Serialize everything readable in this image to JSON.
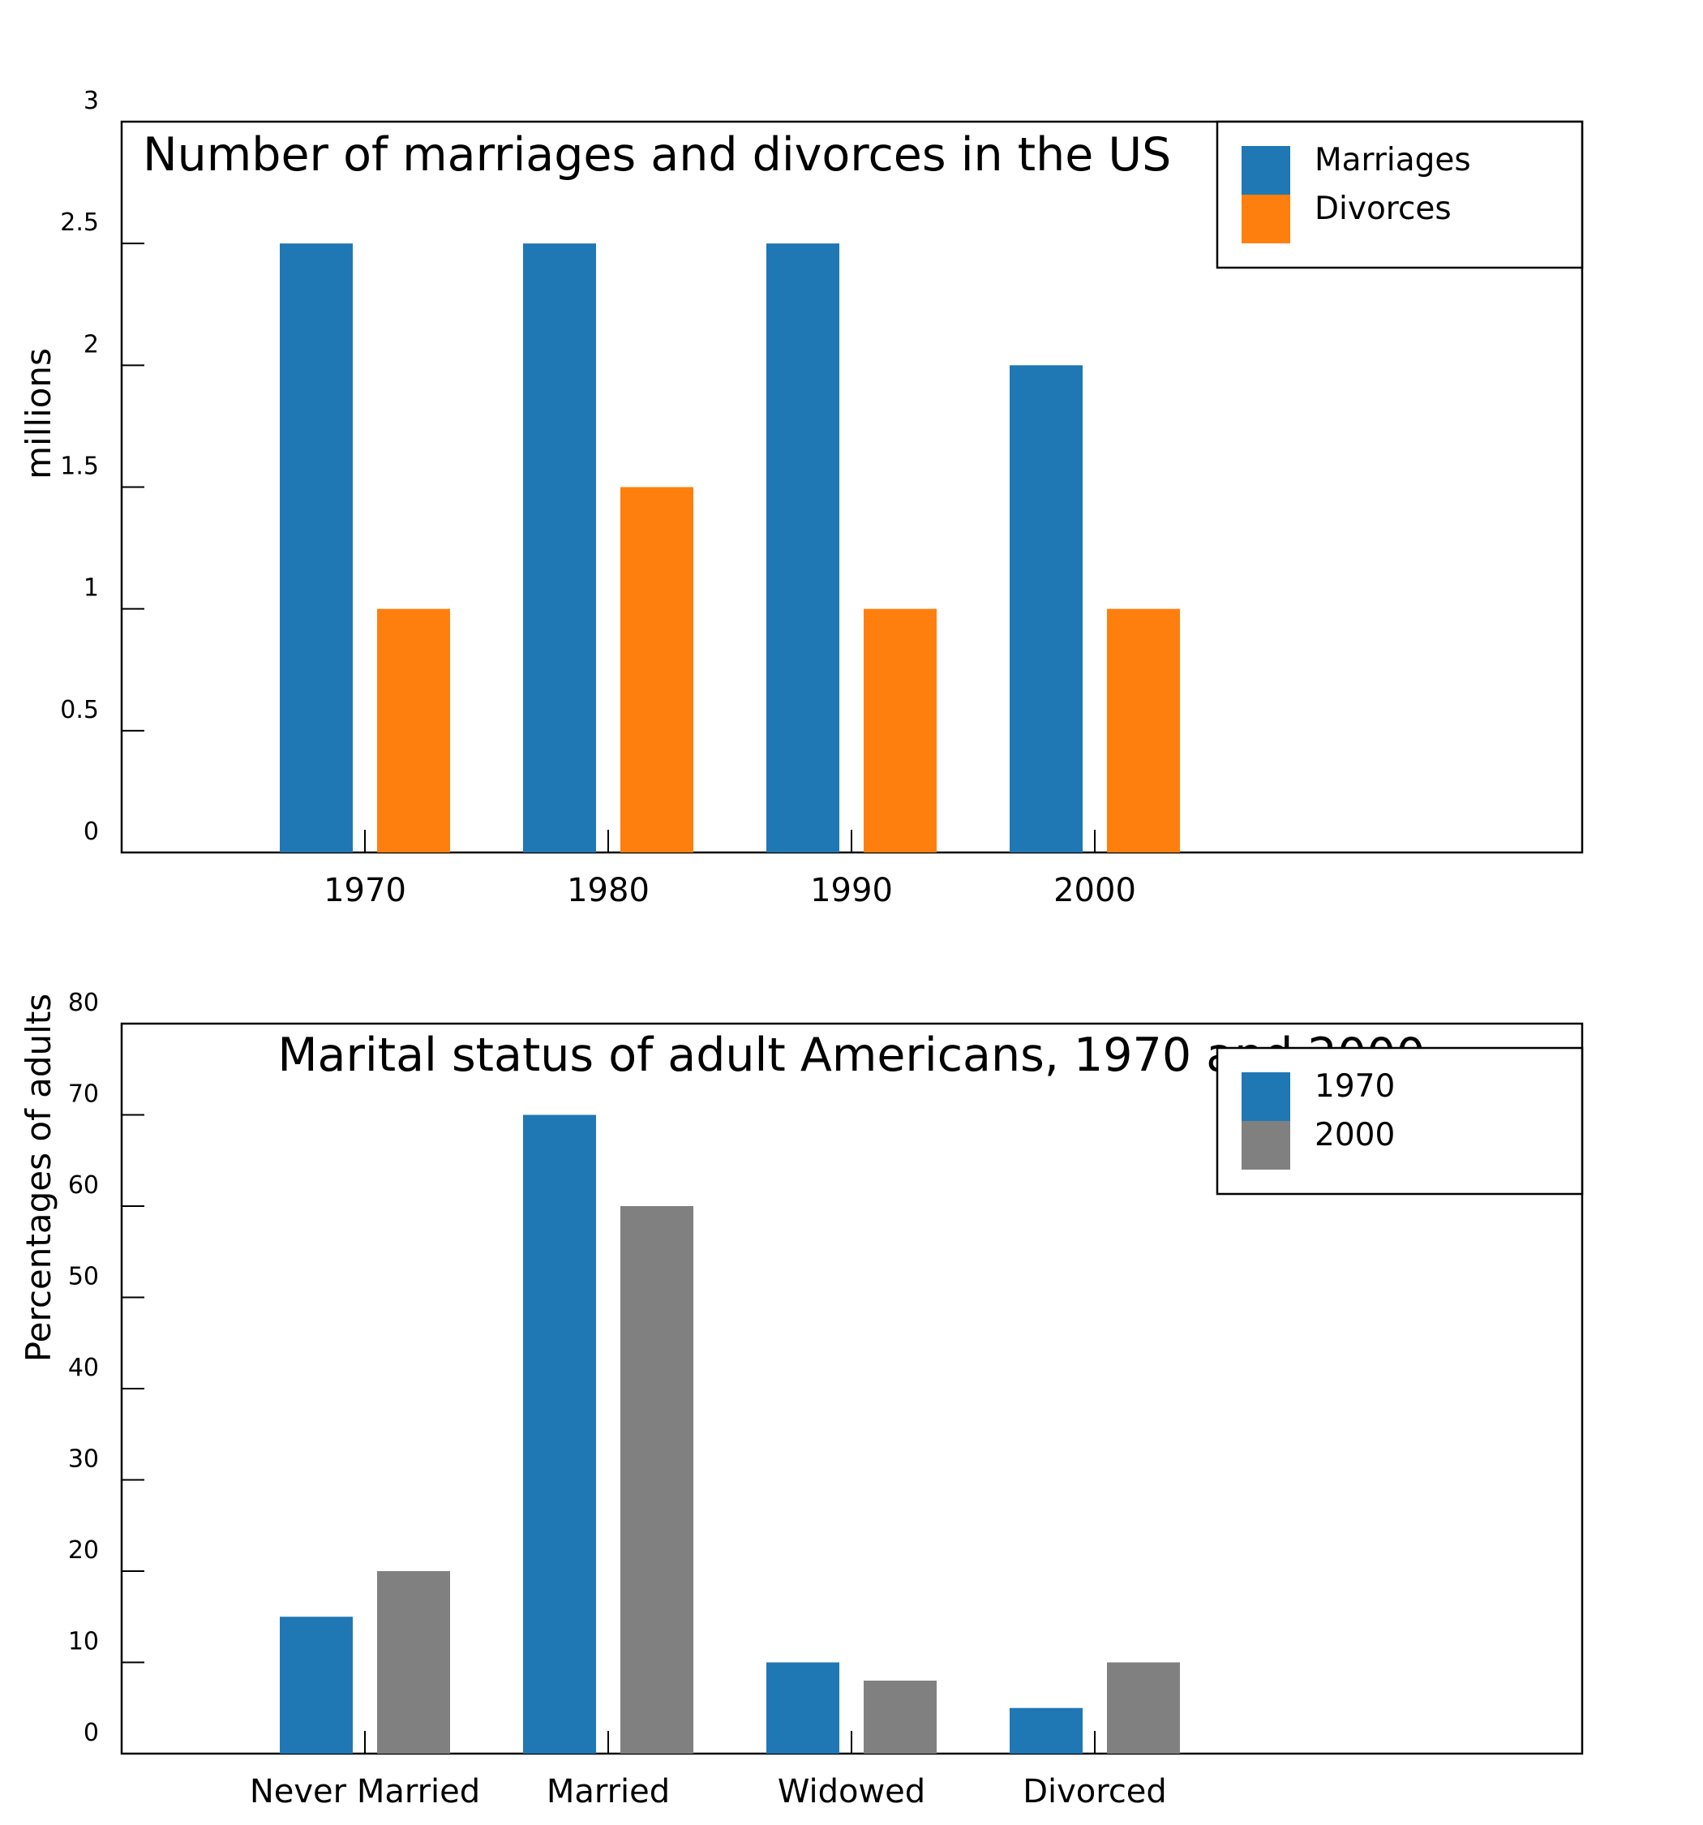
{
  "chart_data": [
    {
      "type": "bar",
      "title": "Number of marriages and divorces in the US",
      "xlabel": "",
      "ylabel": "millions",
      "categories": [
        "1970",
        "1980",
        "1990",
        "2000"
      ],
      "series": [
        {
          "name": "Marriages",
          "values": [
            2.5,
            2.5,
            2.5,
            2.0
          ],
          "color": "#1f77b4"
        },
        {
          "name": "Divorces",
          "values": [
            1.0,
            1.5,
            1.0,
            1.0
          ],
          "color": "#ff7f0e"
        }
      ],
      "ylim": [
        0,
        3
      ],
      "yticks": [
        0,
        0.5,
        1,
        1.5,
        2,
        2.5,
        3
      ],
      "ytick_labels": [
        "0",
        "0.5",
        "1",
        "1.5",
        "2",
        "2.5",
        "3"
      ],
      "legend_position": "top-right",
      "grid": false
    },
    {
      "type": "bar",
      "title": "Marital status of adult Americans, 1970 and 2000",
      "xlabel": "",
      "ylabel": "Percentages of adults",
      "categories": [
        "Never Married",
        "Married",
        "Widowed",
        "Divorced"
      ],
      "series": [
        {
          "name": "1970",
          "values": [
            15,
            70,
            10,
            5
          ],
          "color": "#1f77b4"
        },
        {
          "name": "2000",
          "values": [
            20,
            60,
            8,
            10
          ],
          "color": "#808080"
        }
      ],
      "ylim": [
        0,
        80
      ],
      "yticks": [
        0,
        10,
        20,
        30,
        40,
        50,
        60,
        70,
        80
      ],
      "ytick_labels": [
        "0",
        "10",
        "20",
        "30",
        "40",
        "50",
        "60",
        "70",
        "80"
      ],
      "legend_position": "top-right",
      "grid": false
    }
  ]
}
